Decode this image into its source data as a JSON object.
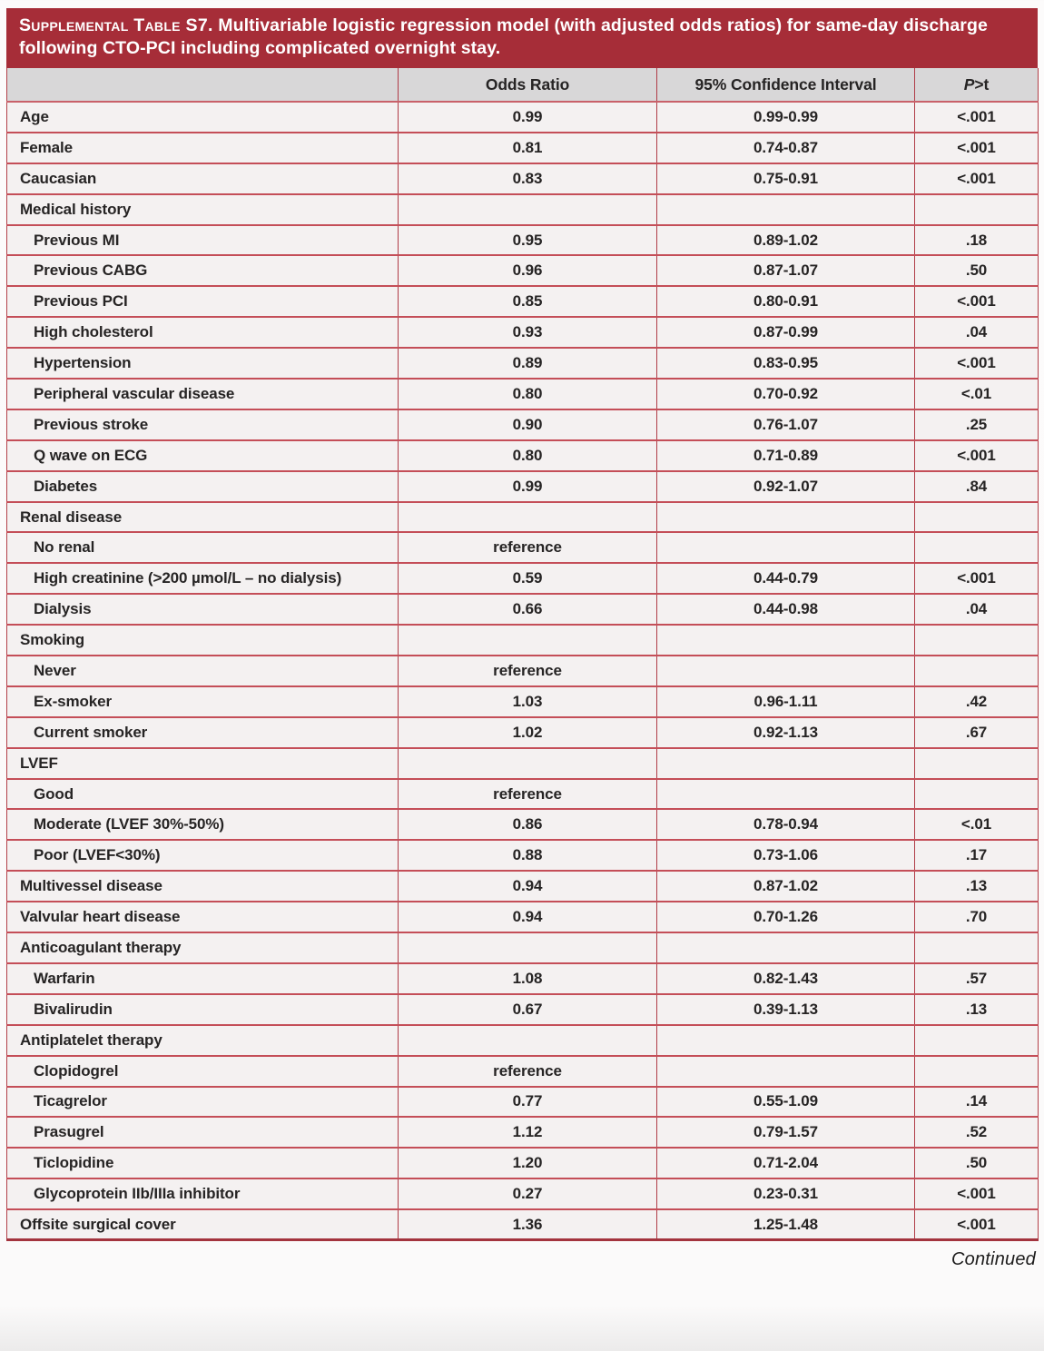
{
  "title": {
    "small_caps": "Supplemental Table S7.",
    "text": " Multivariable logistic regression model (with adjusted odds ratios) for same-day discharge following CTO-PCI including complicated overnight stay."
  },
  "columns": {
    "variable": "",
    "odds_ratio": "Odds Ratio",
    "confidence_interval": "95% Confidence Interval",
    "p_italic": "P",
    "p_rest": ">t"
  },
  "table": {
    "rows": [
      {
        "label": "Age",
        "or": "0.99",
        "ci": "0.99-0.99",
        "p": "<.001"
      },
      {
        "label": "Female",
        "or": "0.81",
        "ci": "0.74-0.87",
        "p": "<.001"
      },
      {
        "label": "Caucasian",
        "or": "0.83",
        "ci": "0.75-0.91",
        "p": "<.001"
      },
      {
        "label": "Medical history",
        "section": true
      },
      {
        "label": "Previous MI",
        "indent": 1,
        "or": "0.95",
        "ci": "0.89-1.02",
        "p": ".18"
      },
      {
        "label": "Previous CABG",
        "indent": 1,
        "or": "0.96",
        "ci": "0.87-1.07",
        "p": ".50"
      },
      {
        "label": "Previous PCI",
        "indent": 1,
        "or": "0.85",
        "ci": "0.80-0.91",
        "p": "<.001"
      },
      {
        "label": "High cholesterol",
        "indent": 1,
        "or": "0.93",
        "ci": "0.87-0.99",
        "p": ".04"
      },
      {
        "label": "Hypertension",
        "indent": 1,
        "or": "0.89",
        "ci": "0.83-0.95",
        "p": "<.001"
      },
      {
        "label": "Peripheral vascular disease",
        "indent": 1,
        "or": "0.80",
        "ci": "0.70-0.92",
        "p": "<.01"
      },
      {
        "label": "Previous stroke",
        "indent": 1,
        "or": "0.90",
        "ci": "0.76-1.07",
        "p": ".25"
      },
      {
        "label": "Q wave on ECG",
        "indent": 1,
        "or": "0.80",
        "ci": "0.71-0.89",
        "p": "<.001"
      },
      {
        "label": "Diabetes",
        "indent": 1,
        "or": "0.99",
        "ci": "0.92-1.07",
        "p": ".84"
      },
      {
        "label": "Renal disease",
        "section": true
      },
      {
        "label": "No renal",
        "indent": 1,
        "or": "reference",
        "ci": "",
        "p": ""
      },
      {
        "label": "High creatinine (>200 µmol/L – no dialysis)",
        "indent": 1,
        "or": "0.59",
        "ci": "0.44-0.79",
        "p": "<.001"
      },
      {
        "label": "Dialysis",
        "indent": 1,
        "or": "0.66",
        "ci": "0.44-0.98",
        "p": ".04"
      },
      {
        "label": "Smoking",
        "section": true
      },
      {
        "label": "Never",
        "indent": 1,
        "or": "reference",
        "ci": "",
        "p": ""
      },
      {
        "label": "Ex-smoker",
        "indent": 1,
        "or": "1.03",
        "ci": "0.96-1.11",
        "p": ".42"
      },
      {
        "label": "Current smoker",
        "indent": 1,
        "or": "1.02",
        "ci": "0.92-1.13",
        "p": ".67"
      },
      {
        "label": "LVEF",
        "section": true
      },
      {
        "label": "Good",
        "indent": 1,
        "or": "reference",
        "ci": "",
        "p": ""
      },
      {
        "label": "Moderate (LVEF 30%-50%)",
        "indent": 1,
        "or": "0.86",
        "ci": "0.78-0.94",
        "p": "<.01"
      },
      {
        "label": "Poor (LVEF<30%)",
        "indent": 1,
        "or": "0.88",
        "ci": "0.73-1.06",
        "p": ".17"
      },
      {
        "label": "Multivessel disease",
        "or": "0.94",
        "ci": "0.87-1.02",
        "p": ".13"
      },
      {
        "label": "Valvular heart disease",
        "or": "0.94",
        "ci": "0.70-1.26",
        "p": ".70"
      },
      {
        "label": "Anticoagulant therapy",
        "section": true
      },
      {
        "label": "Warfarin",
        "indent": 1,
        "or": "1.08",
        "ci": "0.82-1.43",
        "p": ".57"
      },
      {
        "label": "Bivalirudin",
        "indent": 1,
        "or": "0.67",
        "ci": "0.39-1.13",
        "p": ".13"
      },
      {
        "label": "Antiplatelet therapy",
        "section": true
      },
      {
        "label": "Clopidogrel",
        "indent": 1,
        "or": "reference",
        "ci": "",
        "p": ""
      },
      {
        "label": "Ticagrelor",
        "indent": 1,
        "or": "0.77",
        "ci": "0.55-1.09",
        "p": ".14"
      },
      {
        "label": "Prasugrel",
        "indent": 1,
        "or": "1.12",
        "ci": "0.79-1.57",
        "p": ".52"
      },
      {
        "label": "Ticlopidine",
        "indent": 1,
        "or": "1.20",
        "ci": "0.71-2.04",
        "p": ".50"
      },
      {
        "label": "Glycoprotein IIb/IIIa inhibitor",
        "indent": 1,
        "or": "0.27",
        "ci": "0.23-0.31",
        "p": "<.001"
      },
      {
        "label": "Offsite surgical cover",
        "or": "1.36",
        "ci": "1.25-1.48",
        "p": "<.001"
      }
    ]
  },
  "footer": {
    "continued": "Continued"
  },
  "colors": {
    "banner_bg": "#A62D38",
    "header_row_bg": "#D8D7D8",
    "data_row_bg": "#F4F1F1",
    "row_border": "#C44E58",
    "column_border": "#B03C47",
    "text": "#262424",
    "banner_text": "#FFFFFF"
  }
}
